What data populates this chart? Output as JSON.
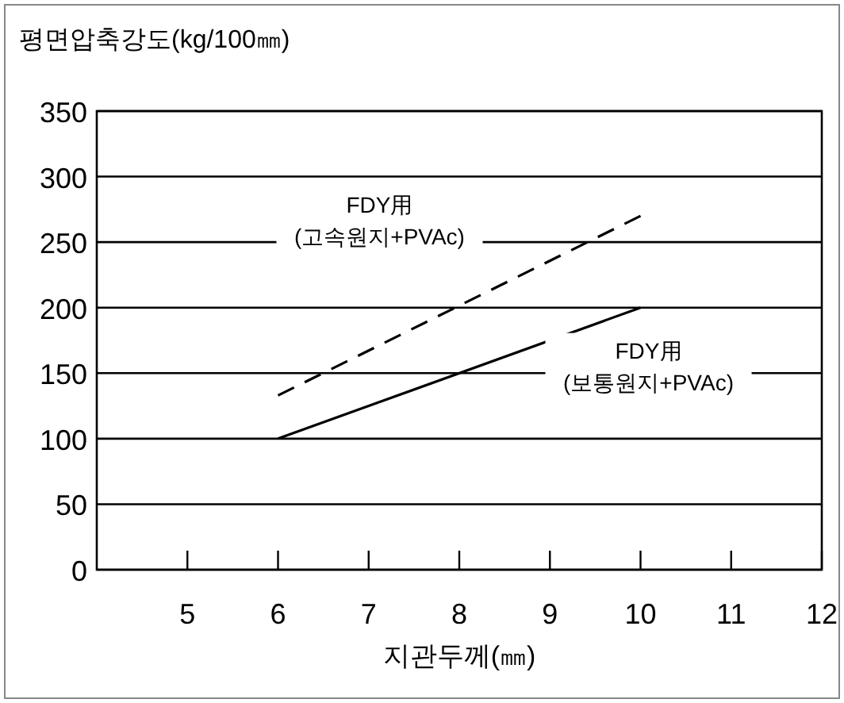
{
  "chart_data": {
    "type": "line",
    "ylabel": "평면압축강도(kg/100㎜)",
    "xlabel": "지관두께(㎜)",
    "x": [
      6,
      10
    ],
    "xlim": [
      4,
      12
    ],
    "xticks": [
      5,
      6,
      7,
      8,
      9,
      10,
      11,
      12
    ],
    "ylim": [
      0,
      350
    ],
    "yticks": [
      0,
      50,
      100,
      150,
      200,
      250,
      300,
      350
    ],
    "grid": "y",
    "legend": false,
    "series": [
      {
        "name": "FDY用\n(고속원지+PVAc)",
        "color": "#000000",
        "line_style": "dashed",
        "values": [
          133,
          270
        ]
      },
      {
        "name": "FDY用\n(보통원지+PVAc)",
        "color": "#000000",
        "line_style": "solid",
        "values": [
          100,
          200
        ]
      }
    ]
  }
}
